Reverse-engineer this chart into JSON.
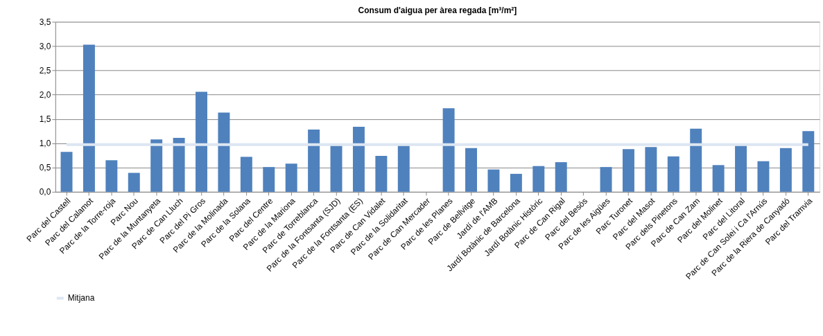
{
  "chart_data": {
    "type": "bar",
    "title": "Consum d'aigua per àrea regada  [m³/m²]",
    "categories": [
      "Parc del Castell",
      "Parc del Calamot",
      "Parc de la Torre-roja",
      "Parc Nou",
      "Parc de la Muntanyeta",
      "Parc de Can Lluch",
      "Parc del Pi Gros",
      "Parc de la Molinada",
      "Parc de la Solana",
      "Parc del Centre",
      "Parc de la Mariona",
      "Parc de Torreblanca",
      "Parc de la Fontsanta (SJD)",
      "Parc de la Fontsanta (ES)",
      "Parc de Can Vidalet",
      "Parc de la Solidaritat",
      "Parc de Can Mercader",
      "Parc de les Planes",
      "Parc de Bellvitge",
      "Jardí de l'AMB",
      "Jardí Botànic de Barcelona",
      "Jardí Botànic Històric",
      "Parc de Can Rigal",
      "Parc del Besòs",
      "Parc de les Aigües",
      "Parc Turonet",
      "Parc del Masot",
      "Parc dels Pinetons",
      "Parc de Can Zam",
      "Parc del Molinet",
      "Parc del Litoral",
      "Parc de Can Solei i Ca l'Arnús",
      "Parc de la Riera de Canyadó",
      "Parc del Tramvia"
    ],
    "series": [
      {
        "color": "#4f81bd",
        "values": [
          0.82,
          3.03,
          0.65,
          0.39,
          1.08,
          1.11,
          2.06,
          1.63,
          0.72,
          0.51,
          0.58,
          1.28,
          0.95,
          1.34,
          0.74,
          0.95,
          null,
          1.72,
          0.9,
          0.46,
          0.37,
          0.53,
          0.61,
          null,
          0.51,
          0.88,
          0.92,
          0.73,
          1.3,
          0.55,
          0.95,
          0.63,
          0.9,
          1.25
        ]
      },
      {
        "type": "line",
        "name": "Mitjana",
        "color": "#dce6f2",
        "values": [
          0.97,
          0.97,
          0.97,
          0.97,
          0.97,
          0.97,
          0.97,
          0.97,
          0.97,
          0.97,
          0.97,
          0.97,
          0.97,
          0.97,
          0.97,
          0.97,
          0.97,
          0.97,
          0.97,
          0.97,
          0.97,
          0.97,
          0.97,
          0.97,
          0.97,
          0.97,
          0.97,
          0.97,
          0.97,
          0.97,
          0.97,
          0.97,
          0.97,
          0.97
        ]
      }
    ],
    "ylim": [
      0,
      3.5
    ],
    "yticks": [
      {
        "value": 0,
        "label": "0,0"
      },
      {
        "value": 0.5,
        "label": "0,5"
      },
      {
        "value": 1,
        "label": "1,0"
      },
      {
        "value": 1.5,
        "label": "1,5"
      },
      {
        "value": 2,
        "label": "2,0"
      },
      {
        "value": 2.5,
        "label": "2,5"
      },
      {
        "value": 3,
        "label": "3,0"
      },
      {
        "value": 3.5,
        "label": "3,5"
      }
    ],
    "grid": "y",
    "legend": "bottom"
  }
}
